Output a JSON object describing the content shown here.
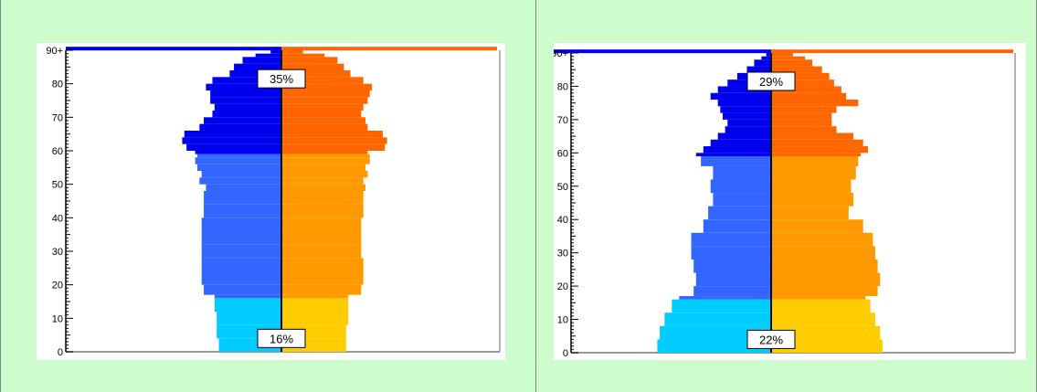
{
  "colors": {
    "male_retired": "#0000ee",
    "male_working": "#3366ff",
    "male_young": "#00ccff",
    "female_retired": "#ff6600",
    "female_working": "#ff9900",
    "female_young": "#ffcc00"
  },
  "chart_data": [
    {
      "type": "population-pyramid",
      "y_ticks": [
        "0",
        "10",
        "20",
        "30",
        "40",
        "50",
        "60",
        "70",
        "80",
        "90+"
      ],
      "ylim": [
        0,
        90
      ],
      "bands": {
        "young_max_age": 16,
        "working_max_age": 59
      },
      "annotations": {
        "top_share": "35%",
        "bottom_share": "16%"
      },
      "max_value": 1,
      "ages": [
        0,
        4,
        8,
        12,
        16,
        17,
        20,
        24,
        28,
        32,
        36,
        40,
        44,
        48,
        50,
        52,
        54,
        56,
        58,
        59,
        60,
        62,
        64,
        66,
        68,
        70,
        72,
        74,
        76,
        78,
        80,
        82,
        84,
        86,
        88,
        89,
        90
      ],
      "male": [
        0.29,
        0.3,
        0.3,
        0.31,
        0.31,
        0.36,
        0.37,
        0.37,
        0.37,
        0.37,
        0.37,
        0.36,
        0.36,
        0.35,
        0.38,
        0.37,
        0.39,
        0.4,
        0.39,
        0.4,
        0.44,
        0.46,
        0.45,
        0.38,
        0.36,
        0.32,
        0.31,
        0.33,
        0.33,
        0.35,
        0.32,
        0.24,
        0.22,
        0.18,
        0.12,
        0.05,
        1.0
      ],
      "female": [
        0.3,
        0.3,
        0.31,
        0.31,
        0.31,
        0.37,
        0.38,
        0.38,
        0.37,
        0.37,
        0.37,
        0.38,
        0.38,
        0.39,
        0.38,
        0.4,
        0.39,
        0.41,
        0.41,
        0.4,
        0.48,
        0.49,
        0.47,
        0.4,
        0.39,
        0.37,
        0.38,
        0.4,
        0.41,
        0.42,
        0.38,
        0.32,
        0.29,
        0.26,
        0.2,
        0.1,
        1.0
      ]
    },
    {
      "type": "population-pyramid",
      "y_ticks": [
        "0",
        "10",
        "20",
        "30",
        "40",
        "50",
        "60",
        "70",
        "80",
        "90+"
      ],
      "ylim": [
        0,
        90
      ],
      "bands": {
        "young_max_age": 16,
        "working_max_age": 59
      },
      "annotations": {
        "top_share": "29%",
        "bottom_share": "22%"
      },
      "max_value": 1,
      "ages": [
        0,
        4,
        8,
        12,
        16,
        17,
        20,
        24,
        28,
        32,
        36,
        40,
        44,
        48,
        52,
        56,
        59,
        60,
        62,
        64,
        66,
        68,
        70,
        72,
        74,
        76,
        78,
        80,
        82,
        84,
        86,
        88,
        89,
        90
      ],
      "male": [
        0.47,
        0.46,
        0.44,
        0.41,
        0.38,
        0.32,
        0.31,
        0.32,
        0.33,
        0.33,
        0.28,
        0.26,
        0.24,
        0.25,
        0.24,
        0.29,
        0.31,
        0.28,
        0.25,
        0.22,
        0.19,
        0.18,
        0.2,
        0.21,
        0.22,
        0.25,
        0.22,
        0.18,
        0.14,
        0.1,
        0.07,
        0.04,
        0.02,
        1.0
      ],
      "female": [
        0.46,
        0.45,
        0.43,
        0.41,
        0.39,
        0.44,
        0.45,
        0.44,
        0.43,
        0.42,
        0.38,
        0.32,
        0.34,
        0.33,
        0.35,
        0.36,
        0.37,
        0.4,
        0.38,
        0.34,
        0.27,
        0.25,
        0.25,
        0.27,
        0.36,
        0.31,
        0.29,
        0.26,
        0.24,
        0.21,
        0.17,
        0.14,
        0.09,
        1.0
      ]
    }
  ]
}
